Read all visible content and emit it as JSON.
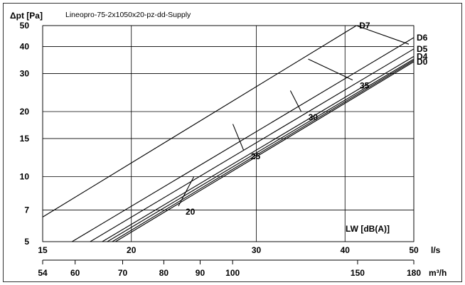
{
  "chart_data": {
    "type": "line",
    "title": "Lineopro-75-2x1050x20-pz-dd-Supply",
    "ylabel": "Δpt [Pa]",
    "xlabel": "l/s",
    "x2label": "m³/h",
    "xscale": "log",
    "yscale": "log",
    "xlim": [
      15,
      50
    ],
    "ylim": [
      5,
      50
    ],
    "grid": true,
    "x_ticks": [
      "15",
      "20",
      "30",
      "40",
      "50"
    ],
    "y_ticks": [
      "5",
      "7",
      "10",
      "15",
      "20",
      "30",
      "40",
      "50"
    ],
    "x2_ticks": [
      "54",
      "60",
      "70",
      "80",
      "90",
      "100",
      "150",
      "180"
    ],
    "series": [
      {
        "name": "D7",
        "x": [
          15,
          41.5
        ],
        "y": [
          6.5,
          50
        ]
      },
      {
        "name": "D6",
        "x": [
          16.5,
          50
        ],
        "y": [
          5,
          44
        ]
      },
      {
        "name": "D5",
        "x": [
          17.5,
          50
        ],
        "y": [
          5,
          39
        ]
      },
      {
        "name": "D4",
        "x": [
          18.2,
          50
        ],
        "y": [
          5,
          36
        ]
      },
      {
        "name": "",
        "x": [
          18.5,
          50
        ],
        "y": [
          5,
          35
        ]
      },
      {
        "name": "",
        "x": [
          18.8,
          50
        ],
        "y": [
          5,
          34.5
        ]
      },
      {
        "name": "D0",
        "x": [
          19,
          50
        ],
        "y": [
          5,
          34
        ]
      }
    ],
    "noise_lines": [
      {
        "label": "20",
        "x": [
          24.5,
          23.3
        ],
        "y": [
          10,
          7.3
        ]
      },
      {
        "label": "25",
        "x": [
          27.8,
          28.8
        ],
        "y": [
          17.5,
          13.2
        ]
      },
      {
        "label": "30",
        "x": [
          33.5,
          34.7
        ],
        "y": [
          25,
          20
        ]
      },
      {
        "label": "35",
        "x": [
          35.5,
          41
        ],
        "y": [
          35,
          28
        ]
      },
      {
        "label": "",
        "x": [
          41.5,
          49.2
        ],
        "y": [
          50,
          41
        ]
      }
    ],
    "noise_axis_label": "LW [dB(A)]",
    "noise_ticks": [
      "20",
      "25",
      "30",
      "35"
    ]
  }
}
